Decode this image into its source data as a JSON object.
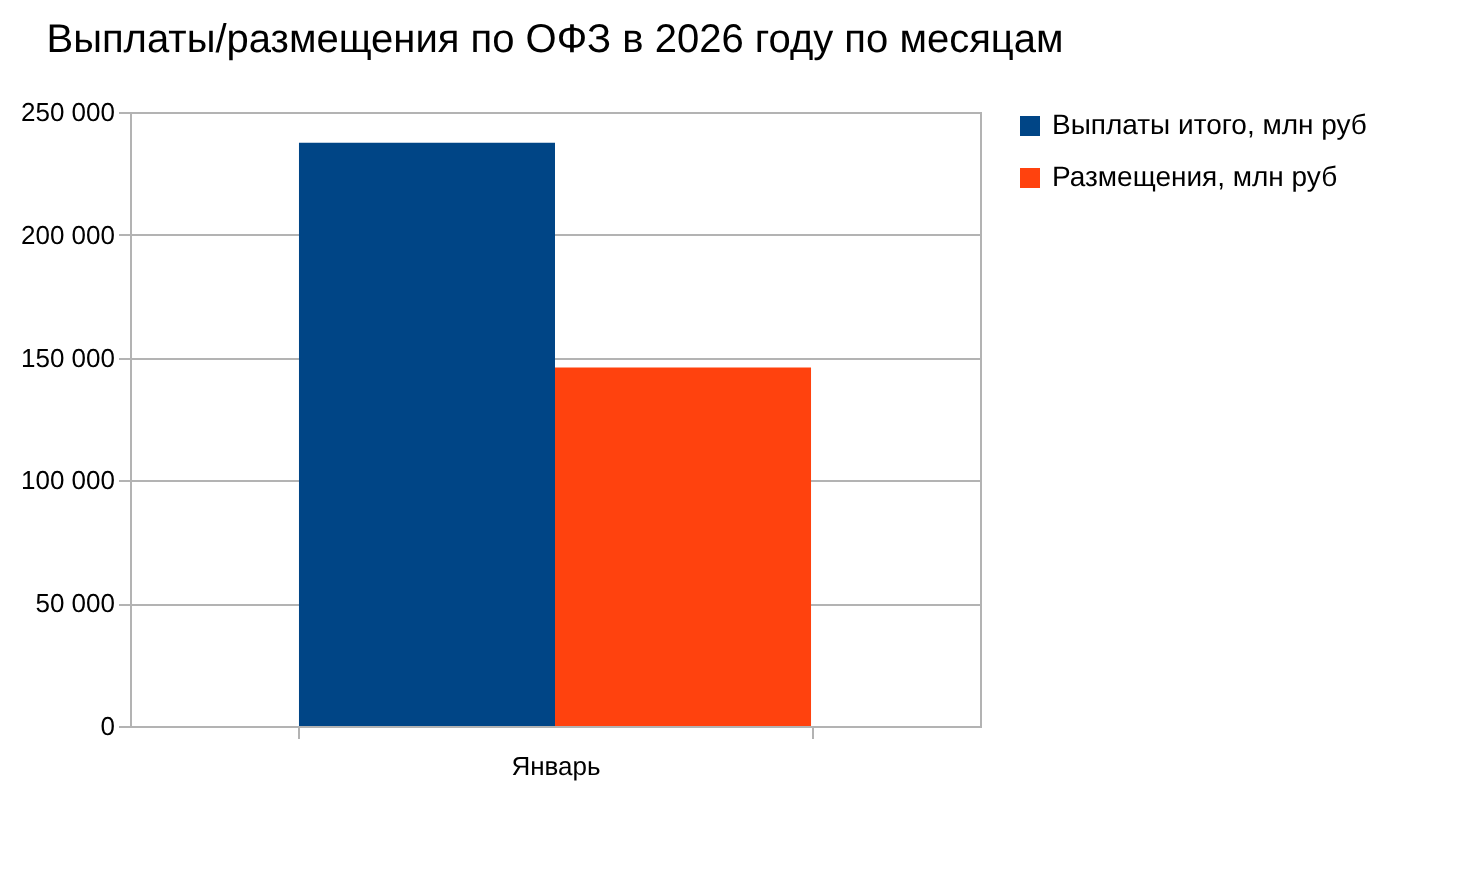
{
  "chart_data": {
    "type": "bar",
    "title": "Выплаты/размещения по ОФЗ в 2026 году по месяцам",
    "categories": [
      "Январь"
    ],
    "series": [
      {
        "name": "Выплаты итого, млн руб",
        "color": "#004586",
        "values": [
          237500
        ]
      },
      {
        "name": "Размещения, млн руб",
        "color": "#ff420e",
        "values": [
          146000
        ]
      }
    ],
    "ylim": [
      0,
      250000
    ],
    "yticks": [
      0,
      {
        "value": 50000,
        "label": "50 000"
      },
      {
        "value": 100000,
        "label": "100 000"
      },
      {
        "value": 150000,
        "label": "150 000"
      },
      {
        "value": 200000,
        "label": "200 000"
      },
      {
        "value": 250000,
        "label": "250 000"
      }
    ],
    "grid": "y",
    "legend": "right"
  }
}
